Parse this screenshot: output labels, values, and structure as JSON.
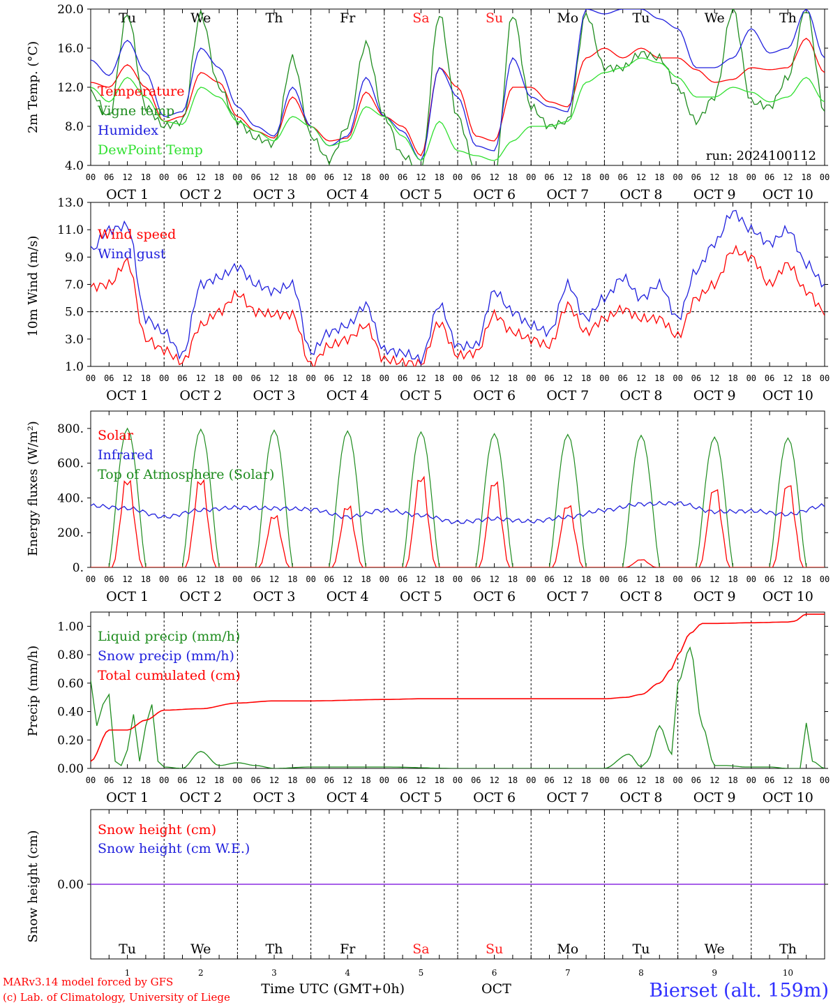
{
  "chart_data": {
    "type": "line",
    "run_label": "run: 2024100112",
    "x_range": [
      "2024-10-01T00:00Z",
      "2024-10-11T00:00Z"
    ],
    "hour_ticks": [
      "00",
      "06",
      "12",
      "18"
    ],
    "end_hour_tick": "00",
    "date_labels": [
      "OCT  1",
      "OCT  2",
      "OCT  3",
      "OCT  4",
      "OCT  5",
      "OCT  6",
      "OCT  7",
      "OCT  8",
      "OCT  9",
      "OCT 10"
    ],
    "weekdays": [
      {
        "label": "Tu",
        "weekend": false
      },
      {
        "label": "We",
        "weekend": false
      },
      {
        "label": "Th",
        "weekend": false
      },
      {
        "label": "Fr",
        "weekend": false
      },
      {
        "label": "Sa",
        "weekend": true
      },
      {
        "label": "Su",
        "weekend": true
      },
      {
        "label": "Mo",
        "weekend": false
      },
      {
        "label": "Tu",
        "weekend": false
      },
      {
        "label": "We",
        "weekend": false
      },
      {
        "label": "Th",
        "weekend": false
      }
    ],
    "weekend_color": "#ff2020",
    "panels": [
      {
        "id": "temperature",
        "ylabel": "2m Temp. (°C)",
        "ylim": [
          4.0,
          20.0
        ],
        "yticks": [
          "4.0",
          "8.0",
          "12.0",
          "16.0",
          "20.0"
        ],
        "show_weekdays": true,
        "series": [
          {
            "name": "Temperature",
            "color": "#ff0000",
            "hours": [
              0,
              6,
              12,
              18,
              24,
              30,
              36,
              42,
              48,
              54,
              60,
              66,
              72,
              78,
              84,
              90,
              96,
              102,
              108,
              114,
              120,
              126,
              132,
              138,
              144,
              150,
              156,
              162,
              168,
              174,
              180,
              186,
              192,
              198,
              204,
              210,
              216,
              222,
              228,
              234,
              240
            ],
            "values": [
              12.5,
              12,
              14.3,
              12,
              8.5,
              9,
              13.5,
              12.5,
              9,
              7.5,
              6.8,
              11,
              8,
              6.5,
              6.8,
              11.5,
              9,
              8,
              5,
              14,
              12,
              7,
              6.5,
              12,
              12,
              10.5,
              10,
              15,
              16,
              15,
              16,
              15,
              15,
              13.8,
              12.5,
              12.8,
              14,
              13.8,
              14,
              17,
              13.5
            ]
          },
          {
            "name": "Vigne temp",
            "color": "#1e8c1e",
            "hours": [
              0,
              6,
              12,
              18,
              24,
              30,
              36,
              42,
              48,
              54,
              60,
              66,
              72,
              78,
              84,
              90,
              96,
              102,
              108,
              114,
              120,
              126,
              132,
              138,
              144,
              150,
              156,
              162,
              168,
              174,
              180,
              186,
              192,
              198,
              204,
              210,
              216,
              222,
              228,
              234,
              240
            ],
            "values": [
              11.5,
              9,
              19.5,
              10,
              8,
              8.5,
              19.5,
              12,
              8.5,
              6.8,
              6.2,
              15,
              7,
              4.5,
              8,
              16.5,
              9,
              5,
              3.5,
              19.5,
              9,
              3.5,
              3,
              19.5,
              10,
              8,
              8.5,
              19.5,
              14,
              14,
              15.5,
              15,
              12,
              8.5,
              11,
              20,
              10.5,
              10,
              13,
              20,
              9.5
            ]
          },
          {
            "name": "Humidex",
            "color": "#2020dd",
            "hours": [
              0,
              6,
              12,
              18,
              24,
              30,
              36,
              42,
              48,
              54,
              60,
              66,
              72,
              78,
              84,
              90,
              96,
              102,
              108,
              114,
              120,
              126,
              132,
              138,
              144,
              150,
              156,
              162,
              168,
              174,
              180,
              186,
              192,
              198,
              204,
              210,
              216,
              222,
              228,
              234,
              240
            ],
            "values": [
              14.8,
              13.2,
              16.8,
              13.5,
              9,
              9.5,
              16,
              14,
              10,
              8,
              7,
              12,
              8,
              6,
              7,
              13,
              9,
              7.5,
              4.5,
              14,
              11,
              6,
              5.5,
              15,
              11,
              10,
              9.5,
              20,
              19.5,
              20,
              20,
              19,
              18,
              14,
              14,
              15,
              18,
              15.5,
              16,
              20,
              15
            ]
          },
          {
            "name": "DewPoint Temp",
            "color": "#30e030",
            "hours": [
              0,
              6,
              12,
              18,
              24,
              30,
              36,
              42,
              48,
              54,
              60,
              66,
              72,
              78,
              84,
              90,
              96,
              102,
              108,
              114,
              120,
              126,
              132,
              138,
              144,
              150,
              156,
              162,
              168,
              174,
              180,
              186,
              192,
              198,
              204,
              210,
              216,
              222,
              228,
              234,
              240
            ],
            "values": [
              12,
              10.5,
              13,
              11,
              8.5,
              8.2,
              12,
              11,
              8.5,
              7.5,
              6.5,
              9,
              8,
              6,
              6.5,
              10,
              9,
              7,
              4.5,
              8.5,
              5.5,
              5,
              4.5,
              6.5,
              8,
              8,
              8.5,
              12.5,
              13.5,
              14,
              15,
              14.5,
              13,
              11,
              11,
              12,
              11.5,
              10.5,
              11,
              13,
              10.5
            ]
          }
        ]
      },
      {
        "id": "wind",
        "ylabel": "10m Wind (m/s)",
        "ylim": [
          1.0,
          13.0
        ],
        "yticks": [
          "1.0",
          "3.0",
          "5.0",
          "7.0",
          "9.0",
          "11.0",
          "13.0"
        ],
        "reference_line": 5.0,
        "show_weekdays": false,
        "series": [
          {
            "name": "Wind speed",
            "color": "#ff0000",
            "hours": [
              0,
              6,
              12,
              18,
              24,
              30,
              36,
              42,
              48,
              54,
              60,
              66,
              72,
              78,
              84,
              90,
              96,
              102,
              108,
              114,
              120,
              126,
              132,
              138,
              144,
              150,
              156,
              162,
              168,
              174,
              180,
              186,
              192,
              198,
              204,
              210,
              216,
              222,
              228,
              234,
              240
            ],
            "values": [
              6.8,
              7,
              8.7,
              3,
              2.2,
              1.3,
              4,
              5,
              6.3,
              5,
              4.8,
              4.8,
              1.1,
              2.5,
              3,
              4,
              1.5,
              1.3,
              1.2,
              4.2,
              1.8,
              2,
              4.8,
              3.5,
              3,
              2.5,
              5.5,
              3.5,
              4.5,
              5.2,
              4.5,
              4.5,
              3.2,
              6,
              7,
              9.5,
              9,
              7,
              8.5,
              6.5,
              5
            ]
          },
          {
            "name": "Wind gust",
            "color": "#2020dd",
            "hours": [
              0,
              6,
              12,
              18,
              24,
              30,
              36,
              42,
              48,
              54,
              60,
              66,
              72,
              78,
              84,
              90,
              96,
              102,
              108,
              114,
              120,
              126,
              132,
              138,
              144,
              150,
              156,
              162,
              168,
              174,
              180,
              186,
              192,
              198,
              204,
              210,
              216,
              222,
              228,
              234,
              240
            ],
            "values": [
              9.5,
              11,
              11.3,
              4.5,
              3.5,
              1.8,
              7,
              7.5,
              8.3,
              7,
              6.5,
              7,
              2,
              3.5,
              4,
              5.5,
              2.2,
              2,
              1.5,
              5.5,
              2.5,
              2.5,
              6.5,
              5,
              4,
              3.5,
              7,
              4.5,
              6,
              7.5,
              6,
              7,
              4.5,
              8,
              10,
              12.3,
              11,
              10,
              11,
              8.5,
              7
            ]
          }
        ]
      },
      {
        "id": "energy",
        "ylabel": "Energy fluxes (W/m²)",
        "ylim": [
          0,
          900
        ],
        "yticks": [
          "0.",
          "200.",
          "400.",
          "600.",
          "800."
        ],
        "show_weekdays": false,
        "solar_peaks": [
          560,
          560,
          330,
          390,
          580,
          550,
          400,
          50,
          510,
          540
        ],
        "toa_peaks": [
          800,
          795,
          790,
          785,
          780,
          770,
          765,
          760,
          750,
          745
        ],
        "infrared": {
          "hours": [
            0,
            12,
            24,
            36,
            48,
            60,
            72,
            84,
            96,
            108,
            120,
            132,
            144,
            156,
            168,
            180,
            192,
            204,
            216,
            228,
            240
          ],
          "values": [
            355,
            340,
            290,
            330,
            345,
            340,
            335,
            290,
            330,
            300,
            260,
            280,
            265,
            290,
            330,
            365,
            370,
            320,
            325,
            305,
            355
          ]
        },
        "series": [
          {
            "name": "Solar",
            "color": "#ff0000"
          },
          {
            "name": "Infrared",
            "color": "#2020dd"
          },
          {
            "name": "Top of Atmosphere (Solar)",
            "color": "#1e8c1e"
          }
        ]
      },
      {
        "id": "precip",
        "ylabel": "Precip (mm/h)",
        "ylim": [
          0.0,
          1.1
        ],
        "yticks": [
          "0.00",
          "0.20",
          "0.40",
          "0.60",
          "0.80",
          "1.00"
        ],
        "show_weekdays": false,
        "series": [
          {
            "name": "Liquid precip (mm/h)",
            "color": "#1e8c1e",
            "hours": [
              0,
              2,
              4,
              6,
              8,
              10,
              12,
              14,
              16,
              18,
              20,
              22,
              24,
              30,
              36,
              42,
              48,
              54,
              60,
              72,
              96,
              120,
              144,
              168,
              176,
              180,
              182,
              186,
              190,
              192,
              196,
              200,
              204,
              208,
              214,
              222,
              228,
              232,
              234,
              236,
              240
            ],
            "values": [
              0.62,
              0.3,
              0.45,
              0.52,
              0.05,
              0.02,
              0.13,
              0.38,
              0.05,
              0.3,
              0.45,
              0.05,
              0.01,
              0.0,
              0.12,
              0.02,
              0.04,
              0.02,
              0.0,
              0.01,
              0.01,
              0.0,
              0.0,
              0.0,
              0.1,
              0.01,
              0.05,
              0.3,
              0.1,
              0.6,
              0.85,
              0.3,
              0.02,
              0.02,
              0.01,
              0.01,
              0.0,
              0.0,
              0.32,
              0.05,
              0.0
            ]
          },
          {
            "name": "Snow precip (mm/h)",
            "color": "#2020dd"
          },
          {
            "name": "Total cumulated (cm)",
            "color": "#ff0000",
            "hours": [
              0,
              6,
              12,
              18,
              24,
              36,
              48,
              60,
              72,
              96,
              108,
              120,
              144,
              168,
              175,
              180,
              186,
              190,
              192,
              196,
              200,
              204,
              216,
              228,
              230,
              234,
              240
            ],
            "values": [
              0.05,
              0.27,
              0.27,
              0.34,
              0.41,
              0.42,
              0.46,
              0.475,
              0.475,
              0.485,
              0.49,
              0.49,
              0.49,
              0.49,
              0.5,
              0.52,
              0.6,
              0.7,
              0.8,
              0.95,
              1.02,
              1.02,
              1.025,
              1.03,
              1.035,
              1.085,
              1.085
            ]
          }
        ]
      },
      {
        "id": "snow",
        "ylabel": "Snow height (cm)",
        "ylim": [
          -1,
          1
        ],
        "yticks": [
          "0.00"
        ],
        "show_weekdays": true,
        "series": [
          {
            "name": "Snow height (cm)",
            "color": "#ff0000"
          },
          {
            "name": "Snow height (cm W.E.)",
            "color": "#2020dd"
          }
        ],
        "line_color": "#8a2be2"
      }
    ],
    "bottom_day_numbers": [
      "1",
      "2",
      "3",
      "4",
      "5",
      "6",
      "7",
      "8",
      "9",
      "10"
    ],
    "xlabel": "Time UTC (GMT+0h)",
    "xlabel_month": "OCT"
  },
  "footer": {
    "credit_line1": "MARv3.14 model forced by GFS",
    "credit_line2": "(c) Lab. of Climatology, University of Liege",
    "station": "Bierset (alt. 159m)",
    "credit_color": "#ff0000",
    "station_color": "#3030ff"
  }
}
